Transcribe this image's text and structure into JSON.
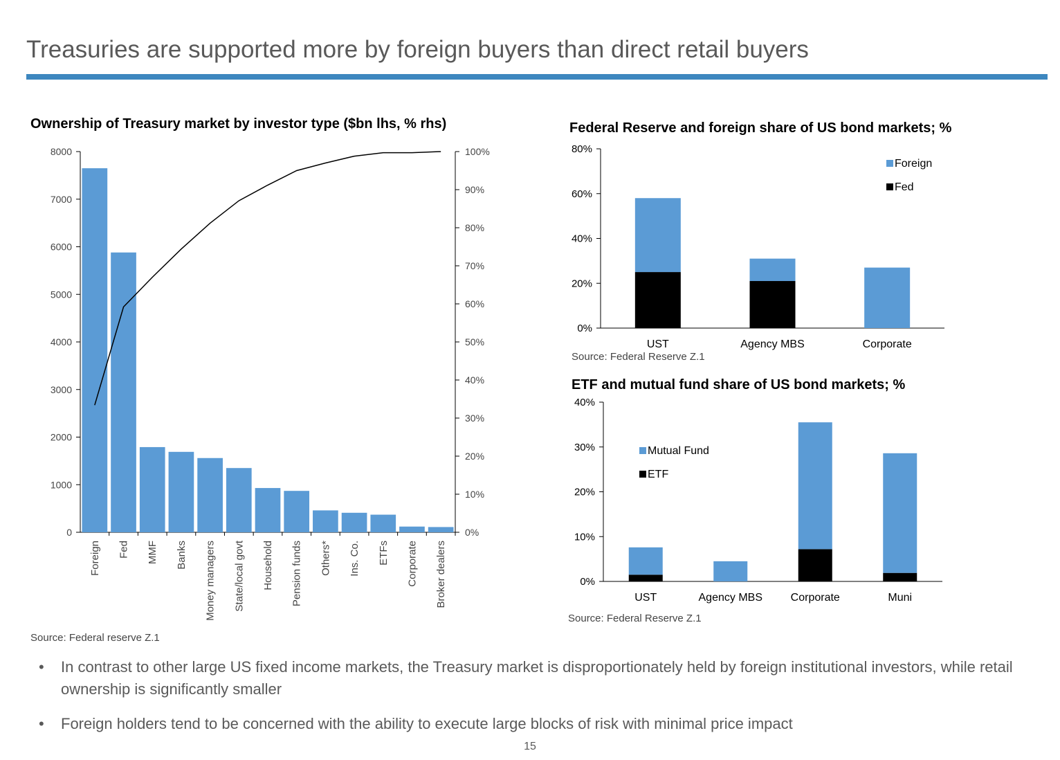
{
  "slide": {
    "title": "Treasuries are supported more by foreign buyers than direct retail buyers",
    "bullets": [
      "In contrast to other large US fixed income markets, the Treasury market is disproportionately held by foreign institutional investors, while retail ownership is significantly smaller",
      "Foreign holders tend to be concerned with the ability to execute large blocks of risk with minimal price impact"
    ],
    "bullet_marker": "•",
    "page_number": "15"
  },
  "colors": {
    "bar_blue": "#5b9bd5",
    "black": "#000000",
    "rule_blue": "#3d87bf"
  },
  "chart_data": [
    {
      "id": "ownership",
      "type": "bar",
      "title": "Ownership of Treasury market by investor type ($bn lhs, % rhs)",
      "source": "Source: Federal reserve Z.1",
      "categories": [
        "Foreign",
        "Fed",
        "MMF",
        "Banks",
        "Money managers",
        "State/local govt",
        "Household",
        "Pension funds",
        "Others*",
        "Ins. Co.",
        "ETFs",
        "Corporate",
        "Broker dealers"
      ],
      "values": [
        7650,
        5880,
        1790,
        1690,
        1560,
        1350,
        930,
        870,
        460,
        410,
        370,
        120,
        110
      ],
      "cumulative_pct": [
        33.4,
        59.2,
        67.0,
        74.4,
        81.2,
        87.1,
        91.2,
        95.0,
        97.0,
        98.8,
        99.7,
        99.7,
        100.0
      ],
      "ylim": [
        0,
        8000
      ],
      "yticks": [
        "0",
        "1000",
        "2000",
        "3000",
        "4000",
        "5000",
        "6000",
        "7000",
        "8000"
      ],
      "y2lim": [
        0,
        100
      ],
      "y2ticks": [
        "0%",
        "10%",
        "20%",
        "30%",
        "40%",
        "50%",
        "60%",
        "70%",
        "80%",
        "90%",
        "100%"
      ]
    },
    {
      "id": "fed-foreign",
      "type": "bar",
      "stacked": true,
      "title": "Federal Reserve and foreign share of US bond markets; %",
      "source": "Source: Federal Reserve Z.1",
      "categories": [
        "UST",
        "Agency MBS",
        "Corporate"
      ],
      "series": [
        {
          "name": "Fed",
          "color": "#000000",
          "values": [
            25,
            21,
            0
          ]
        },
        {
          "name": "Foreign",
          "color": "#5b9bd5",
          "values": [
            33,
            10,
            27
          ]
        }
      ],
      "legend": [
        "Foreign",
        "Fed"
      ],
      "ylim": [
        0,
        80
      ],
      "yticks": [
        "0%",
        "20%",
        "40%",
        "60%",
        "80%"
      ]
    },
    {
      "id": "etf-mutual",
      "type": "bar",
      "stacked": true,
      "title": "ETF and mutual fund share of US bond markets; %",
      "source": "Source: Federal Reserve Z.1",
      "categories": [
        "UST",
        "Agency MBS",
        "Corporate",
        "Muni"
      ],
      "series": [
        {
          "name": "ETF",
          "color": "#000000",
          "values": [
            1.5,
            0,
            7.2,
            1.9
          ]
        },
        {
          "name": "Mutual Fund",
          "color": "#5b9bd5",
          "values": [
            6.1,
            4.5,
            28.3,
            26.7
          ]
        }
      ],
      "legend": [
        "Mutual Fund",
        "ETF"
      ],
      "ylim": [
        0,
        40
      ],
      "yticks": [
        "0%",
        "10%",
        "20%",
        "30%",
        "40%"
      ]
    }
  ]
}
